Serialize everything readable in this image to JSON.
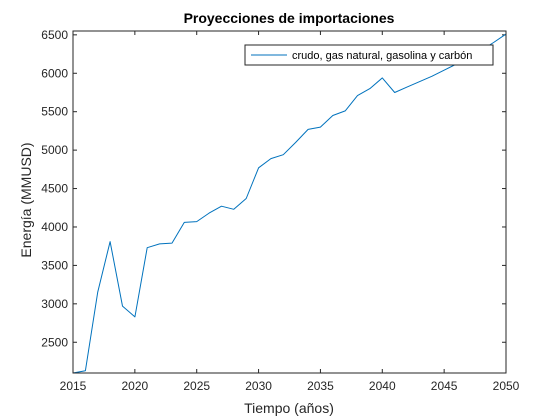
{
  "chart_data": {
    "type": "line",
    "title": "Proyecciones de importaciones",
    "xlabel": "Tiempo (años)",
    "ylabel": "Energía (MMUSD)",
    "xlim": [
      2015,
      2050
    ],
    "ylim": [
      2100,
      6550
    ],
    "xticks": [
      2015,
      2020,
      2025,
      2030,
      2035,
      2040,
      2045,
      2050
    ],
    "yticks": [
      2500,
      3000,
      3500,
      4000,
      4500,
      5000,
      5500,
      6000,
      6500
    ],
    "grid": false,
    "legend_position": "top-right",
    "series": [
      {
        "name": "crudo, gas natural, gasolina y carbón",
        "color": "#0072BD",
        "x": [
          2015,
          2016,
          2017,
          2018,
          2019,
          2020,
          2021,
          2022,
          2023,
          2024,
          2025,
          2026,
          2027,
          2028,
          2029,
          2030,
          2031,
          2032,
          2033,
          2034,
          2035,
          2036,
          2037,
          2038,
          2039,
          2040,
          2041,
          2042,
          2043,
          2044,
          2045,
          2046,
          2047,
          2048,
          2049,
          2050
        ],
        "y": [
          2100,
          2130,
          3150,
          3810,
          2970,
          2830,
          3730,
          3780,
          3790,
          4060,
          4070,
          4180,
          4270,
          4230,
          4370,
          4770,
          4890,
          4940,
          5100,
          5270,
          5300,
          5450,
          5510,
          5710,
          5800,
          5940,
          5750,
          5820,
          5890,
          5960,
          6040,
          6120,
          6210,
          6300,
          6400,
          6510
        ]
      }
    ]
  }
}
